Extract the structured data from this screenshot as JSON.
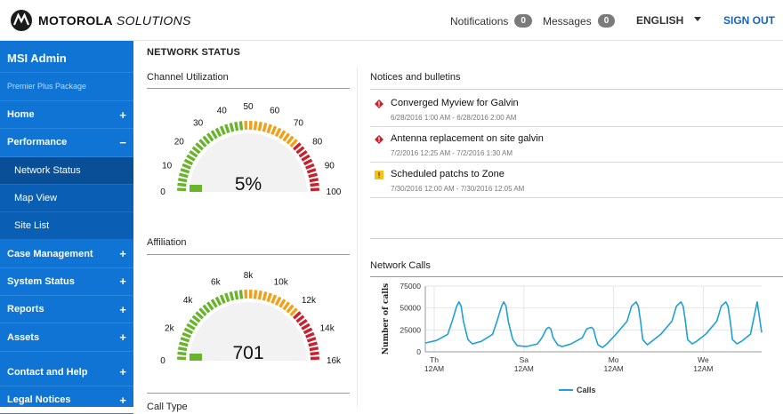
{
  "brand": {
    "name_bold": "MOTOROLA",
    "name_italic": "SOLUTIONS"
  },
  "topnav": {
    "notifications_label": "Notifications",
    "notifications_count": "0",
    "messages_label": "Messages",
    "messages_count": "0",
    "language": "ENGLISH",
    "signout": "SIGN OUT"
  },
  "sidebar": {
    "title": "MSI Admin",
    "package": "Premier Plus Package",
    "items": [
      {
        "label": "Home",
        "toggle": "+"
      },
      {
        "label": "Performance",
        "toggle": "−"
      },
      {
        "label": "Case Management",
        "toggle": "+"
      },
      {
        "label": "System Status",
        "toggle": "+"
      },
      {
        "label": "Reports",
        "toggle": "+"
      },
      {
        "label": "Assets",
        "toggle": "+"
      },
      {
        "label": "Contact and Help",
        "toggle": "+"
      },
      {
        "label": "Legal Notices",
        "toggle": "+"
      }
    ],
    "sub_items": [
      "Network Status",
      "Map View",
      "Site List"
    ]
  },
  "main": {
    "page_title": "NETWORK STATUS",
    "channel_title": "Channel Utilization",
    "channel_value": "5%",
    "channel_level": 0.05,
    "channel_ticks": [
      "0",
      "10",
      "20",
      "30",
      "40",
      "50",
      "60",
      "70",
      "80",
      "90",
      "100"
    ],
    "affiliation_title": "Affiliation",
    "affiliation_value": "701",
    "affiliation_level": 0.044,
    "affiliation_ticks": [
      "0",
      "2k",
      "4k",
      "6k",
      "8k",
      "10k",
      "12k",
      "14k",
      "16k"
    ],
    "calltype_title": "Call Type",
    "notices_title": "Notices and bulletins",
    "notices": [
      {
        "icon": "error-icon",
        "title": "Converged Myview for Galvin",
        "dates": "6/28/2016 1:00 AM - 6/28/2016 2:00 AM"
      },
      {
        "icon": "error-icon",
        "title": "Antenna replacement on site galvin",
        "dates": "7/2/2016 12:25 AM - 7/2/2016 1:30 AM"
      },
      {
        "icon": "warning-icon",
        "title": "Scheduled patchs to Zone",
        "dates": "7/30/2016 12:00 AM - 7/30/2016 12:05 AM"
      }
    ],
    "calls_title": "Network Calls"
  },
  "colors": {
    "accent": "#0f74d3",
    "green": "#6ab42d",
    "orange": "#f0a11a",
    "red": "#c8202d",
    "error": "#c8202d",
    "warning": "#f4c316",
    "line": "#1ea1d6"
  },
  "chart_data": {
    "type": "line",
    "title": "Network Calls",
    "xlabel": "",
    "ylabel": "Number of calls",
    "x_ticks": [
      "Th\n12AM",
      "Sa\n12AM",
      "Mo\n12AM",
      "We\n12AM"
    ],
    "x_tick_positions": [
      0,
      2,
      4,
      6
    ],
    "y_ticks": [
      "0",
      "25000",
      "50000",
      "75000"
    ],
    "ylim": [
      0,
      75000
    ],
    "xlim": [
      0,
      7.5
    ],
    "legend": "bottom",
    "grid": true,
    "series": [
      {
        "name": "Calls",
        "x": [
          0,
          0.25,
          0.5,
          0.6,
          0.7,
          0.75,
          0.8,
          0.85,
          0.95,
          1.05,
          1.25,
          1.5,
          1.6,
          1.7,
          1.75,
          1.8,
          1.85,
          1.95,
          2.05,
          2.25,
          2.5,
          2.6,
          2.7,
          2.75,
          2.8,
          2.85,
          2.95,
          3.05,
          3.25,
          3.5,
          3.6,
          3.7,
          3.75,
          3.8,
          3.85,
          3.95,
          4.05,
          4.25,
          4.5,
          4.6,
          4.7,
          4.75,
          4.8,
          4.85,
          4.95,
          5.05,
          5.25,
          5.5,
          5.6,
          5.7,
          5.75,
          5.8,
          5.85,
          5.95,
          6.05,
          6.25,
          6.5,
          6.6,
          6.7,
          6.75,
          6.8,
          6.85,
          6.95,
          7.05,
          7.25,
          7.4,
          7.5
        ],
        "values": [
          10000,
          13000,
          20000,
          35000,
          52000,
          57000,
          52000,
          35000,
          14000,
          9000,
          12000,
          20000,
          35000,
          52000,
          57000,
          52000,
          35000,
          14000,
          7000,
          6000,
          9000,
          16000,
          26000,
          28000,
          26000,
          16000,
          8000,
          6000,
          9000,
          16000,
          26000,
          28000,
          26000,
          16000,
          8000,
          5000,
          9000,
          20000,
          35000,
          52000,
          57000,
          52000,
          35000,
          14000,
          8000,
          12000,
          20000,
          35000,
          52000,
          57000,
          52000,
          35000,
          14000,
          9000,
          12000,
          20000,
          35000,
          52000,
          57000,
          52000,
          35000,
          14000,
          9000,
          12000,
          20000,
          57000,
          22000
        ]
      }
    ]
  }
}
